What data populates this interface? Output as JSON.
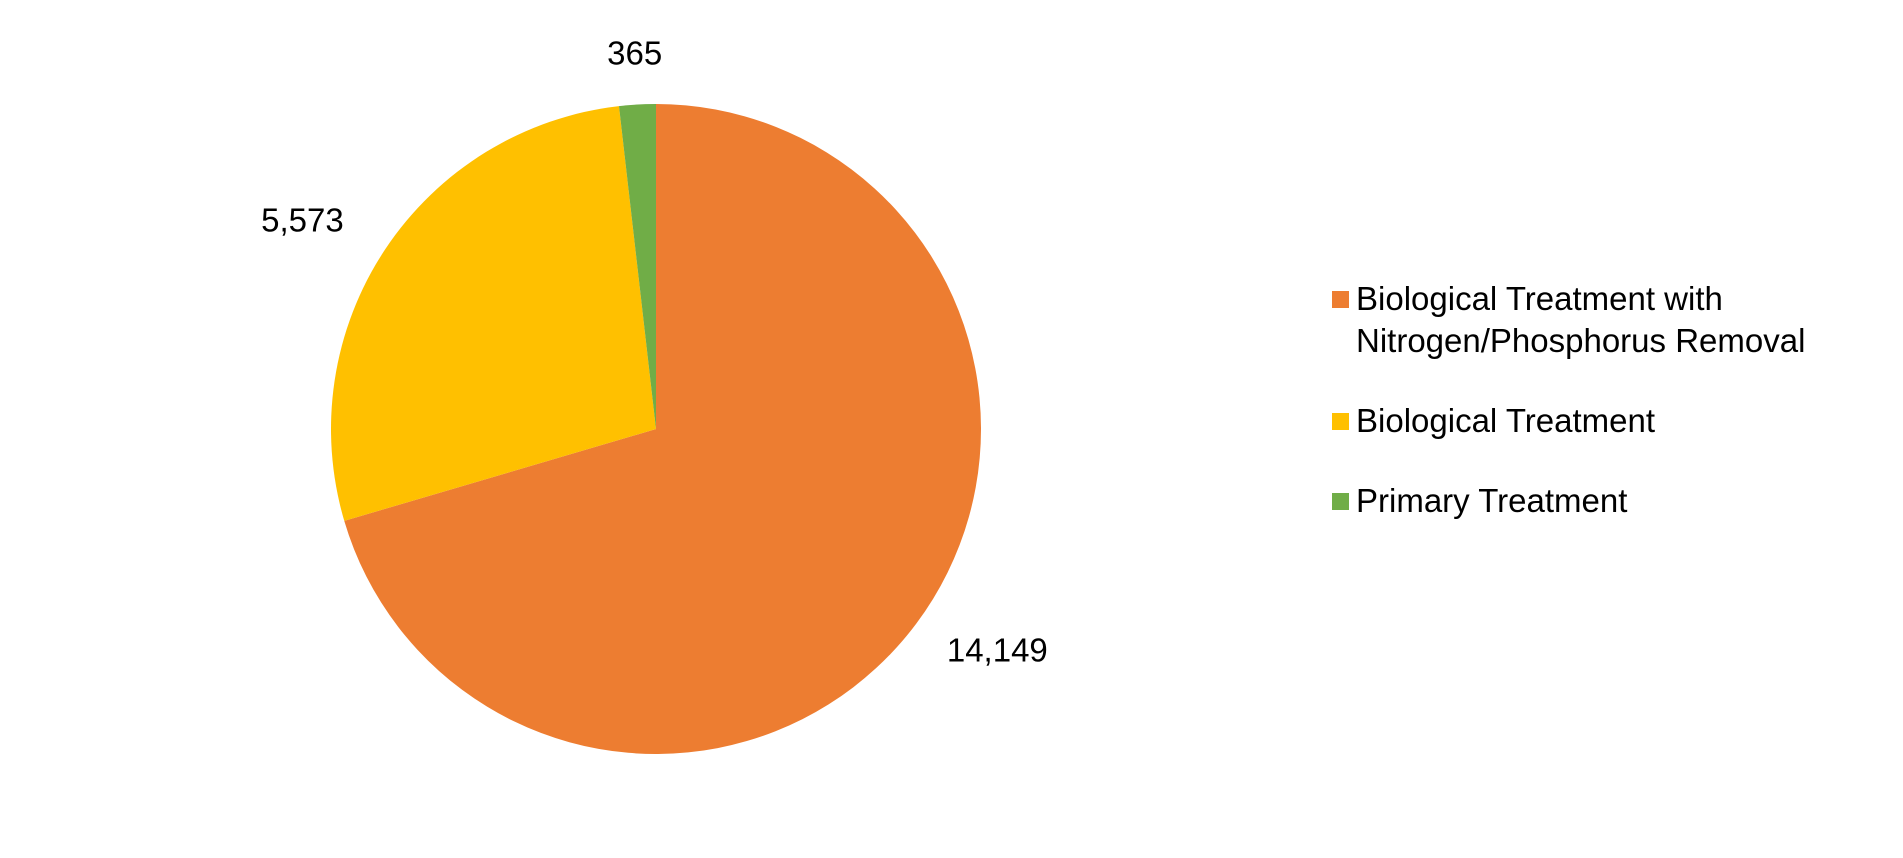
{
  "chart_data": {
    "type": "pie",
    "categories": [
      "Biological Treatment with Nitrogen/Phosphorus Removal",
      "Biological Treatment",
      "Primary Treatment"
    ],
    "values": [
      14149,
      5573,
      365
    ],
    "value_labels": [
      "14,149",
      "5,573",
      "365"
    ],
    "colors": [
      "#ed7d31",
      "#ffc000",
      "#70ad47"
    ],
    "start_angle": 0,
    "direction": "clockwise",
    "legend": "right"
  }
}
